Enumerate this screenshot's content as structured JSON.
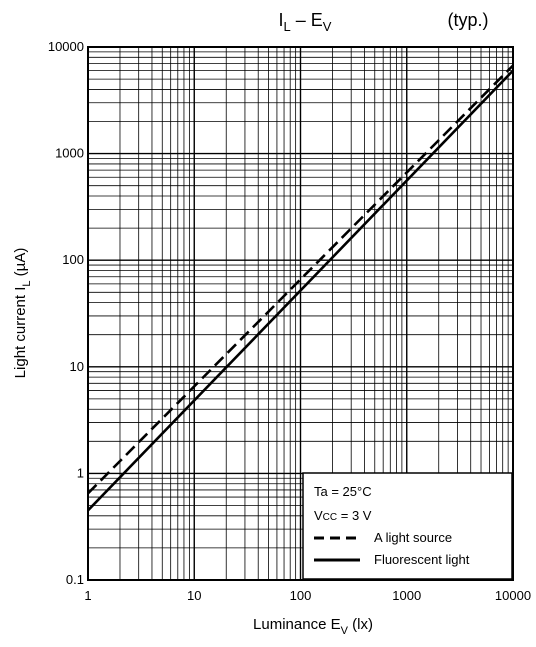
{
  "chart_data": {
    "type": "line",
    "title": {
      "main": "I",
      "main_sub": "L",
      "dash": " – E",
      "dash_sub": "V"
    },
    "note": "(typ.)",
    "xlabel": {
      "main": "Luminance   E",
      "sub": "V",
      "unit": "   (lx)"
    },
    "ylabel": {
      "main": "Light current   I",
      "sub": "L",
      "unit": "   (µA)"
    },
    "x_scale": "log",
    "y_scale": "log",
    "xlim": [
      1,
      10000
    ],
    "ylim": [
      0.1,
      10000
    ],
    "x_ticks": [
      "1",
      "10",
      "100",
      "1000",
      "10000"
    ],
    "y_ticks": [
      "0.1",
      "1",
      "10",
      "100",
      "1000",
      "10000"
    ],
    "grid": true,
    "series": [
      {
        "name": "A light source",
        "style": "dashed",
        "x": [
          1,
          10000
        ],
        "y": [
          0.65,
          6700
        ]
      },
      {
        "name": "Fluorescent light",
        "style": "solid",
        "x": [
          1,
          10000
        ],
        "y": [
          0.45,
          6000
        ]
      }
    ],
    "legend": {
      "position": "bottom-right",
      "conditions": [
        {
          "main": "Ta = 25°C"
        },
        {
          "main": "V",
          "sub": "CC",
          "rest": " = 3 V"
        }
      ]
    }
  }
}
